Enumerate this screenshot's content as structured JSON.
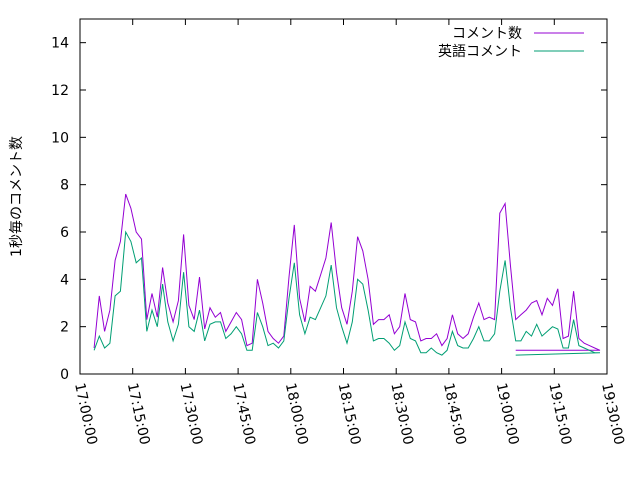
{
  "chart_data": {
    "type": "line",
    "title": "",
    "xlabel": "",
    "ylabel": "1秒毎のコメント数",
    "ylim": [
      0,
      15
    ],
    "yticks": [
      0,
      2,
      4,
      6,
      8,
      10,
      12,
      14
    ],
    "xlim": [
      "17:00:00",
      "19:30:00"
    ],
    "xticks": [
      "17:00:00",
      "17:15:00",
      "17:30:00",
      "17:45:00",
      "18:00:00",
      "18:15:00",
      "18:30:00",
      "18:45:00",
      "19:00:00",
      "19:15:00",
      "19:30:00"
    ],
    "legend_position": "top-right",
    "grid": false,
    "series": [
      {
        "name": "コメント数",
        "color": "#9400d3",
        "points": [
          [
            "17:04:00",
            1.1
          ],
          [
            "17:05:30",
            3.3
          ],
          [
            "17:07:00",
            1.8
          ],
          [
            "17:08:30",
            2.7
          ],
          [
            "17:10:00",
            4.8
          ],
          [
            "17:11:30",
            5.6
          ],
          [
            "17:13:00",
            7.6
          ],
          [
            "17:14:30",
            7.0
          ],
          [
            "17:16:00",
            6.0
          ],
          [
            "17:17:30",
            5.7
          ],
          [
            "17:19:00",
            2.3
          ],
          [
            "17:20:30",
            3.4
          ],
          [
            "17:22:00",
            2.4
          ],
          [
            "17:23:30",
            4.5
          ],
          [
            "17:25:00",
            3.0
          ],
          [
            "17:26:30",
            2.2
          ],
          [
            "17:28:00",
            3.1
          ],
          [
            "17:29:30",
            5.9
          ],
          [
            "17:31:00",
            2.9
          ],
          [
            "17:32:30",
            2.3
          ],
          [
            "17:34:00",
            4.1
          ],
          [
            "17:35:30",
            1.9
          ],
          [
            "17:37:00",
            2.8
          ],
          [
            "17:38:30",
            2.4
          ],
          [
            "17:40:00",
            2.6
          ],
          [
            "17:41:30",
            1.8
          ],
          [
            "17:43:00",
            2.2
          ],
          [
            "17:44:30",
            2.6
          ],
          [
            "17:46:00",
            2.3
          ],
          [
            "17:47:30",
            1.2
          ],
          [
            "17:49:00",
            1.3
          ],
          [
            "17:50:30",
            4.0
          ],
          [
            "17:52:00",
            3.0
          ],
          [
            "17:53:30",
            1.8
          ],
          [
            "17:55:00",
            1.5
          ],
          [
            "17:56:30",
            1.3
          ],
          [
            "17:58:00",
            1.6
          ],
          [
            "17:59:30",
            4.1
          ],
          [
            "18:01:00",
            6.3
          ],
          [
            "18:02:30",
            3.2
          ],
          [
            "18:04:00",
            2.2
          ],
          [
            "18:05:30",
            3.7
          ],
          [
            "18:07:00",
            3.5
          ],
          [
            "18:08:30",
            4.2
          ],
          [
            "18:10:00",
            4.9
          ],
          [
            "18:11:30",
            6.4
          ],
          [
            "18:13:00",
            4.3
          ],
          [
            "18:14:30",
            2.8
          ],
          [
            "18:16:00",
            2.1
          ],
          [
            "18:17:30",
            3.5
          ],
          [
            "18:19:00",
            5.8
          ],
          [
            "18:20:30",
            5.2
          ],
          [
            "18:22:00",
            4.0
          ],
          [
            "18:23:30",
            2.1
          ],
          [
            "18:25:00",
            2.3
          ],
          [
            "18:26:30",
            2.3
          ],
          [
            "18:28:00",
            2.5
          ],
          [
            "18:29:30",
            1.7
          ],
          [
            "18:31:00",
            2.0
          ],
          [
            "18:32:30",
            3.4
          ],
          [
            "18:34:00",
            2.3
          ],
          [
            "18:35:30",
            2.2
          ],
          [
            "18:37:00",
            1.4
          ],
          [
            "18:38:30",
            1.5
          ],
          [
            "18:40:00",
            1.5
          ],
          [
            "18:41:30",
            1.7
          ],
          [
            "18:43:00",
            1.2
          ],
          [
            "18:44:30",
            1.5
          ],
          [
            "18:46:00",
            2.5
          ],
          [
            "18:47:30",
            1.7
          ],
          [
            "18:49:00",
            1.5
          ],
          [
            "18:50:30",
            1.7
          ],
          [
            "18:52:00",
            2.4
          ],
          [
            "18:53:30",
            3.0
          ],
          [
            "18:55:00",
            2.3
          ],
          [
            "18:56:30",
            2.4
          ],
          [
            "18:58:00",
            2.3
          ],
          [
            "18:59:30",
            6.8
          ],
          [
            "19:01:00",
            7.2
          ],
          [
            "19:02:30",
            4.6
          ],
          [
            "19:04:00",
            2.3
          ],
          [
            "19:05:30",
            2.5
          ],
          [
            "19:07:00",
            2.7
          ],
          [
            "19:08:30",
            3.0
          ],
          [
            "19:10:00",
            3.1
          ],
          [
            "19:11:30",
            2.5
          ],
          [
            "19:13:00",
            3.2
          ],
          [
            "19:14:30",
            2.9
          ],
          [
            "19:16:00",
            3.6
          ],
          [
            "19:17:30",
            1.5
          ],
          [
            "19:19:00",
            1.6
          ],
          [
            "19:20:30",
            3.5
          ],
          [
            "19:22:00",
            1.5
          ],
          [
            "19:23:30",
            1.3
          ],
          [
            "19:25:00",
            1.2
          ],
          [
            "19:26:30",
            1.1
          ],
          [
            "19:28:00",
            1.0
          ],
          [
            "19:04:00",
            1.0
          ]
        ]
      },
      {
        "name": "英語コメント",
        "color": "#009e73",
        "points": [
          [
            "17:04:00",
            1.0
          ],
          [
            "17:05:30",
            1.6
          ],
          [
            "17:07:00",
            1.1
          ],
          [
            "17:08:30",
            1.3
          ],
          [
            "17:10:00",
            3.3
          ],
          [
            "17:11:30",
            3.5
          ],
          [
            "17:13:00",
            6.0
          ],
          [
            "17:14:30",
            5.6
          ],
          [
            "17:16:00",
            4.7
          ],
          [
            "17:17:30",
            4.9
          ],
          [
            "17:19:00",
            1.8
          ],
          [
            "17:20:30",
            2.7
          ],
          [
            "17:22:00",
            2.0
          ],
          [
            "17:23:30",
            3.8
          ],
          [
            "17:25:00",
            2.2
          ],
          [
            "17:26:30",
            1.4
          ],
          [
            "17:28:00",
            2.1
          ],
          [
            "17:29:30",
            4.3
          ],
          [
            "17:31:00",
            2.0
          ],
          [
            "17:32:30",
            1.8
          ],
          [
            "17:34:00",
            2.7
          ],
          [
            "17:35:30",
            1.4
          ],
          [
            "17:37:00",
            2.1
          ],
          [
            "17:38:30",
            2.2
          ],
          [
            "17:40:00",
            2.2
          ],
          [
            "17:41:30",
            1.5
          ],
          [
            "17:43:00",
            1.7
          ],
          [
            "17:44:30",
            2.0
          ],
          [
            "17:46:00",
            1.7
          ],
          [
            "17:47:30",
            1.0
          ],
          [
            "17:49:00",
            1.0
          ],
          [
            "17:50:30",
            2.6
          ],
          [
            "17:52:00",
            2.0
          ],
          [
            "17:53:30",
            1.2
          ],
          [
            "17:55:00",
            1.3
          ],
          [
            "17:56:30",
            1.1
          ],
          [
            "17:58:00",
            1.4
          ],
          [
            "17:59:30",
            3.2
          ],
          [
            "18:01:00",
            4.7
          ],
          [
            "18:02:30",
            2.5
          ],
          [
            "18:04:00",
            1.7
          ],
          [
            "18:05:30",
            2.4
          ],
          [
            "18:07:00",
            2.3
          ],
          [
            "18:08:30",
            2.8
          ],
          [
            "18:10:00",
            3.3
          ],
          [
            "18:11:30",
            4.6
          ],
          [
            "18:13:00",
            2.8
          ],
          [
            "18:14:30",
            2.0
          ],
          [
            "18:16:00",
            1.3
          ],
          [
            "18:17:30",
            2.2
          ],
          [
            "18:19:00",
            4.0
          ],
          [
            "18:20:30",
            3.8
          ],
          [
            "18:22:00",
            2.7
          ],
          [
            "18:23:30",
            1.4
          ],
          [
            "18:25:00",
            1.5
          ],
          [
            "18:26:30",
            1.5
          ],
          [
            "18:28:00",
            1.3
          ],
          [
            "18:29:30",
            1.0
          ],
          [
            "18:31:00",
            1.2
          ],
          [
            "18:32:30",
            2.2
          ],
          [
            "18:34:00",
            1.5
          ],
          [
            "18:35:30",
            1.4
          ],
          [
            "18:37:00",
            0.9
          ],
          [
            "18:38:30",
            0.9
          ],
          [
            "18:40:00",
            1.1
          ],
          [
            "18:41:30",
            0.9
          ],
          [
            "18:43:00",
            0.8
          ],
          [
            "18:44:30",
            1.0
          ],
          [
            "18:46:00",
            1.8
          ],
          [
            "18:47:30",
            1.2
          ],
          [
            "18:49:00",
            1.1
          ],
          [
            "18:50:30",
            1.1
          ],
          [
            "18:52:00",
            1.5
          ],
          [
            "18:53:30",
            2.0
          ],
          [
            "18:55:00",
            1.4
          ],
          [
            "18:56:30",
            1.4
          ],
          [
            "18:58:00",
            1.7
          ],
          [
            "18:59:30",
            3.5
          ],
          [
            "19:01:00",
            4.8
          ],
          [
            "19:02:30",
            2.8
          ],
          [
            "19:04:00",
            1.4
          ],
          [
            "19:05:30",
            1.4
          ],
          [
            "19:07:00",
            1.8
          ],
          [
            "19:08:30",
            1.6
          ],
          [
            "19:10:00",
            2.1
          ],
          [
            "19:11:30",
            1.6
          ],
          [
            "19:13:00",
            1.8
          ],
          [
            "19:14:30",
            2.0
          ],
          [
            "19:16:00",
            1.9
          ],
          [
            "19:17:30",
            1.1
          ],
          [
            "19:19:00",
            1.1
          ],
          [
            "19:20:30",
            2.3
          ],
          [
            "19:22:00",
            1.2
          ],
          [
            "19:23:30",
            1.1
          ],
          [
            "19:25:00",
            1.0
          ],
          [
            "19:26:30",
            0.9
          ],
          [
            "19:28:00",
            0.9
          ],
          [
            "19:04:00",
            0.8
          ]
        ]
      }
    ]
  }
}
